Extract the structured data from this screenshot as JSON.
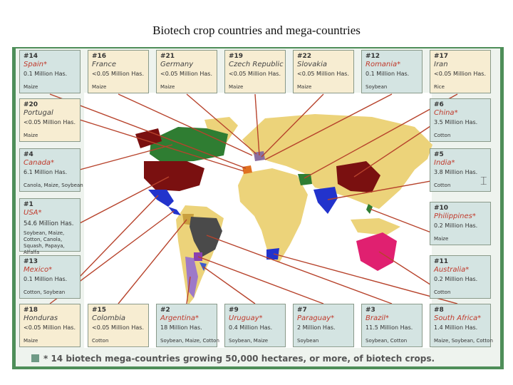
{
  "title": "Biotech crop countries and mega-countries",
  "legend_text": "* 14 biotech mega-countries growing 50,000 hectares, or more, of biotech crops.",
  "colors": {
    "frame": "#4e8e59",
    "mega_box": "#d4e4e2",
    "other_box": "#f7edd2",
    "connector": "#b7432c",
    "land": "#ecd37a",
    "ocean": "#ffffff"
  },
  "boxes": [
    {
      "rank": "#14",
      "name": "Spain*",
      "area": "0.1 Million Has.",
      "crops": "Maize"
    },
    {
      "rank": "#16",
      "name": "France",
      "area": "<0.05 Million Has.",
      "crops": "Maize"
    },
    {
      "rank": "#21",
      "name": "Germany",
      "area": "<0.05 Million Has.",
      "crops": "Maize"
    },
    {
      "rank": "#19",
      "name": "Czech Republic",
      "area": "<0.05 Million Has.",
      "crops": "Maize"
    },
    {
      "rank": "#22",
      "name": "Slovakia",
      "area": "<0.05 Million Has.",
      "crops": "Maize"
    },
    {
      "rank": "#12",
      "name": "Romania*",
      "area": "0.1 Million Has.",
      "crops": "Soybean"
    },
    {
      "rank": "#17",
      "name": "Iran",
      "area": "<0.05 Million Has.",
      "crops": "Rice"
    },
    {
      "rank": "#20",
      "name": "Portugal",
      "area": "<0.05 Million Has.",
      "crops": "Maize"
    },
    {
      "rank": "#6",
      "name": "China*",
      "area": "3.5 Million Has.",
      "crops": "Cotton"
    },
    {
      "rank": "#4",
      "name": "Canada*",
      "area": "6.1 Million Has.",
      "crops": "Canola, Maize, Soybean"
    },
    {
      "rank": "#5",
      "name": "India*",
      "area": "3.8 Million Has.",
      "crops": "Cotton"
    },
    {
      "rank": "#1",
      "name": "USA*",
      "area": "54.6 Million Has.",
      "crops": "Soybean, Maize, Cotton, Canola, Squash, Papaya, Alfalfa"
    },
    {
      "rank": "#10",
      "name": "Philippines*",
      "area": "0.2 Million Has.",
      "crops": "Maize"
    },
    {
      "rank": "#13",
      "name": "Mexico*",
      "area": "0.1 Million Has.",
      "crops": "Cotton, Soybean"
    },
    {
      "rank": "#11",
      "name": "Australia*",
      "area": "0.2 Million Has.",
      "crops": "Cotton"
    },
    {
      "rank": "#18",
      "name": "Honduras",
      "area": "<0.05 Million Has.",
      "crops": "Maize"
    },
    {
      "rank": "#15",
      "name": "Colombia",
      "area": "<0.05 Million Has.",
      "crops": "Cotton"
    },
    {
      "rank": "#2",
      "name": "Argentina*",
      "area": "18 Million Has.",
      "crops": "Soybean, Maize, Cotton"
    },
    {
      "rank": "#9",
      "name": "Uruguay*",
      "area": "0.4 Million Has.",
      "crops": "Soybean, Maize"
    },
    {
      "rank": "#7",
      "name": "Paraguay*",
      "area": "2 Million Has.",
      "crops": "Soybean"
    },
    {
      "rank": "#3",
      "name": "Brazil*",
      "area": "11.5 Million Has.",
      "crops": "Soybean, Cotton"
    },
    {
      "rank": "#8",
      "name": "South Africa*",
      "area": "1.4 Million Has.",
      "crops": "Maize, Soybean, Cotton"
    }
  ]
}
